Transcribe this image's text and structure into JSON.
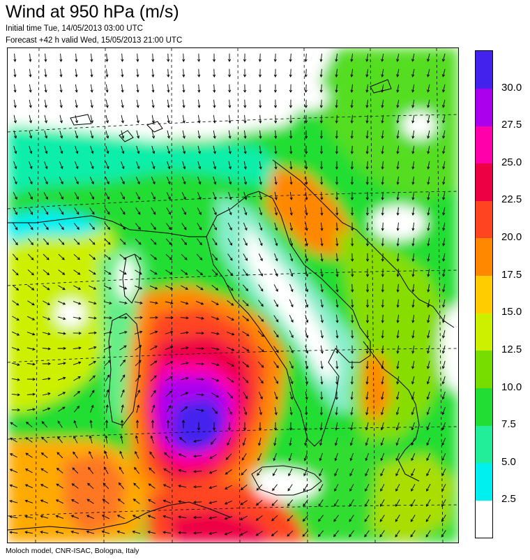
{
  "header": {
    "title": "Wind at 950 hPa (m/s)",
    "initial_time": "Initial time  Tue, 14/05/2013 03:00 UTC",
    "forecast": "Forecast +42 h valid  Wed, 15/05/2013 21:00 UTC"
  },
  "footer": {
    "credit": "Moloch model, CNR-ISAC, Bologna, Italy"
  },
  "colorbar": {
    "bins": [
      {
        "color": "#ffffff",
        "label": "2.5"
      },
      {
        "color": "#00f0f0",
        "label": "5.0"
      },
      {
        "color": "#22ee99",
        "label": "7.5"
      },
      {
        "color": "#22dd33",
        "label": "10.0"
      },
      {
        "color": "#77dd00",
        "label": "12.5"
      },
      {
        "color": "#ccf000",
        "label": "15.0"
      },
      {
        "color": "#ffcc00",
        "label": "17.5"
      },
      {
        "color": "#ff8800",
        "label": "20.0"
      },
      {
        "color": "#ff4422",
        "label": "22.5"
      },
      {
        "color": "#ee0044",
        "label": "25.0"
      },
      {
        "color": "#ff00aa",
        "label": "27.5"
      },
      {
        "color": "#aa00ee",
        "label": "30.0"
      },
      {
        "color": "#4422ee",
        "label": ""
      }
    ]
  },
  "map": {
    "field": "wind speed at 950 hPa",
    "units": "m/s",
    "arrow_color": "#000000",
    "coast_color": "#000000",
    "graticule": "dashed",
    "max_wind_area": "Tyrrhenian Sea, west of Italy",
    "max_wind_speed_ms": 30
  }
}
